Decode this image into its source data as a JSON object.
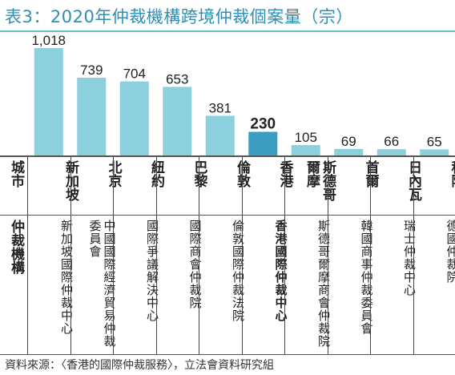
{
  "title": "表3：2020年仲裁機構跨境仲裁個案量（宗）",
  "row_labels": {
    "city": "城市",
    "organization": "仲裁機構"
  },
  "source": "資料來源：〈香港的國際仲裁服務〉，立法會資料研究組",
  "colors": {
    "bar": "#8ccfdd",
    "bar_highlight": "#3b9dbf",
    "title": "#2d8fb5"
  },
  "chart_data": {
    "type": "bar",
    "title": "表3：2020年仲裁機構跨境仲裁個案量（宗）",
    "categories": [
      "新加坡",
      "北京",
      "紐約",
      "巴黎",
      "倫敦",
      "香港",
      "斯德哥爾摩",
      "首爾",
      "日內瓦",
      "科隆"
    ],
    "values": [
      1018,
      739,
      704,
      653,
      381,
      230,
      105,
      69,
      66,
      65
    ],
    "value_labels": [
      "1,018",
      "739",
      "704",
      "653",
      "381",
      "230",
      "105",
      "69",
      "66",
      "65"
    ],
    "highlight": "香港",
    "xlabel": "",
    "ylabel": "",
    "ylim": [
      0,
      1018
    ]
  },
  "organizations": [
    "新加坡國際仲裁中心",
    "中國國際經濟貿易仲裁委員會",
    "國際爭議解決中心",
    "國際商會仲裁院",
    "倫敦國際仲裁法院",
    "香港國際仲裁中心",
    "斯德哥爾摩商會仲裁院",
    "韓國商事仲裁委員會",
    "瑞士仲裁中心",
    "德國仲裁院"
  ]
}
